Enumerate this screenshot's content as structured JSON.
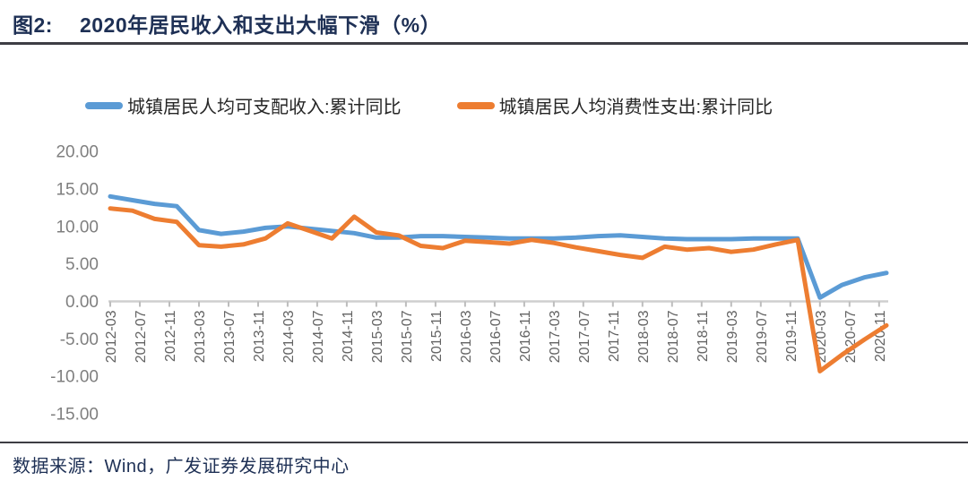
{
  "header": {
    "title_prefix": "图2:",
    "title": "2020年居民收入和支出大幅下滑（%）"
  },
  "footer": {
    "source": "数据来源：Wind，广发证券发展研究中心"
  },
  "colors": {
    "income_line": "#5B9BD5",
    "expenditure_line": "#ED7D31",
    "title_navy": "#1e3055",
    "axis_gray": "#cfcfcf",
    "tick_label_gray": "#636363"
  },
  "chart_data": {
    "type": "line",
    "title": "图2: 2020年居民收入和支出大幅下滑（%）",
    "xlabel": "",
    "ylabel": "",
    "grid": false,
    "legend_position": "top",
    "ylim": [
      -15,
      20
    ],
    "y_ticks": [
      20,
      15,
      10,
      5,
      0,
      -5,
      -10,
      -15
    ],
    "x_tick_labels": [
      "2012-03",
      "2012-07",
      "2012-11",
      "2013-03",
      "2013-07",
      "2013-11",
      "2014-03",
      "2014-07",
      "2014-11",
      "2015-03",
      "2015-07",
      "2015-11",
      "2016-03",
      "2016-07",
      "2016-11",
      "2017-03",
      "2017-07",
      "2017-11",
      "2018-03",
      "2018-07",
      "2018-11",
      "2019-03",
      "2019-07",
      "2019-11",
      "2020-03",
      "2020-07",
      "2020-11"
    ],
    "x": [
      "2012-03",
      "2012-06",
      "2012-09",
      "2012-12",
      "2013-03",
      "2013-06",
      "2013-09",
      "2013-12",
      "2014-03",
      "2014-06",
      "2014-09",
      "2014-12",
      "2015-03",
      "2015-06",
      "2015-09",
      "2015-12",
      "2016-03",
      "2016-06",
      "2016-09",
      "2016-12",
      "2017-03",
      "2017-06",
      "2017-09",
      "2017-12",
      "2018-03",
      "2018-06",
      "2018-09",
      "2018-12",
      "2019-03",
      "2019-06",
      "2019-09",
      "2019-12",
      "2020-03",
      "2020-06",
      "2020-09",
      "2020-12"
    ],
    "series": [
      {
        "id": "income",
        "name": "城镇居民人均可支配收入:累计同比",
        "color": "#5B9BD5",
        "values": [
          14.0,
          13.5,
          13.0,
          12.7,
          9.5,
          9.0,
          9.3,
          9.8,
          10.0,
          9.7,
          9.4,
          9.1,
          8.5,
          8.5,
          8.7,
          8.7,
          8.6,
          8.5,
          8.4,
          8.4,
          8.4,
          8.5,
          8.7,
          8.8,
          8.6,
          8.4,
          8.3,
          8.3,
          8.3,
          8.4,
          8.4,
          8.4,
          0.5,
          2.2,
          3.2,
          3.8
        ]
      },
      {
        "id": "expenditure",
        "name": "城镇居民人均消费性支出:累计同比",
        "color": "#ED7D31",
        "values": [
          12.4,
          12.1,
          11.0,
          10.6,
          7.5,
          7.3,
          7.6,
          8.4,
          10.4,
          9.4,
          8.4,
          11.3,
          9.2,
          8.8,
          7.4,
          7.1,
          8.1,
          7.9,
          7.7,
          8.2,
          7.8,
          7.2,
          6.7,
          6.2,
          5.8,
          7.3,
          6.9,
          7.1,
          6.6,
          6.9,
          7.6,
          8.2,
          -9.3,
          -7.1,
          -5.1,
          -3.2
        ]
      }
    ]
  }
}
